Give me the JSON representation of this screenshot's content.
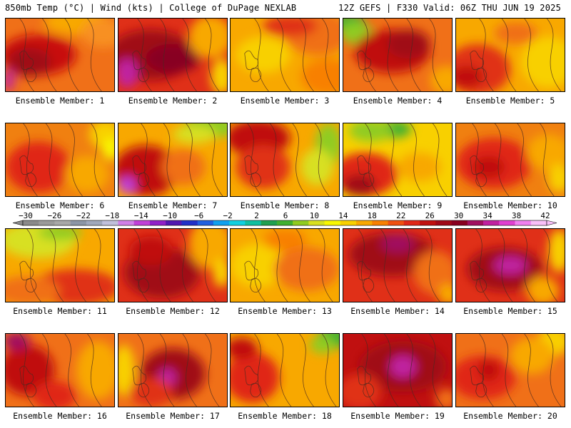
{
  "header": {
    "left": "850mb Temp (°C) | Wind (kts) | College of DuPage NEXLAB",
    "right": "12Z GEFS | F330 Valid: 06Z THU JUN 19 2025"
  },
  "colorbar": {
    "ticks": [
      "-30",
      "-26",
      "-22",
      "-18",
      "-14",
      "-10",
      "-6",
      "-2",
      "2",
      "6",
      "10",
      "14",
      "18",
      "22",
      "26",
      "30",
      "34",
      "38",
      "42"
    ],
    "colors": [
      "#8a8a8a",
      "#9a9a9a",
      "#a8a8a8",
      "#8c96a6",
      "#a0a8bc",
      "#c0c0dc",
      "#d080e8",
      "#c040d8",
      "#9020c8",
      "#5018b0",
      "#2030c8",
      "#2060e0",
      "#10a0f0",
      "#10d0e0",
      "#10c0a0",
      "#20a050",
      "#40b030",
      "#90cc20",
      "#d8e020",
      "#f8f800",
      "#f8d000",
      "#f8a800",
      "#f88000",
      "#f05010",
      "#e02818",
      "#c01010",
      "#a00818",
      "#880020",
      "#a01060",
      "#c020a0",
      "#e040d0",
      "#f080f0",
      "#f8c0f8"
    ]
  },
  "members": [
    {
      "label": "Ensemble Member: 1",
      "base": "#f07018",
      "blobs": [
        [
          "#c81010",
          0.3,
          0.5,
          0.35,
          0.28
        ],
        [
          "#a00818",
          0.22,
          0.6,
          0.2,
          0.2
        ],
        [
          "#c020a0",
          0.03,
          0.85,
          0.05,
          0.15
        ],
        [
          "#f8a800",
          0.65,
          0.05,
          0.3,
          0.18
        ],
        [
          "#f89020",
          0.9,
          0.2,
          0.2,
          0.2
        ]
      ]
    },
    {
      "label": "Ensemble Member: 2",
      "base": "#e03018",
      "blobs": [
        [
          "#a00818",
          0.3,
          0.5,
          0.4,
          0.35
        ],
        [
          "#c020a0",
          0.08,
          0.75,
          0.1,
          0.2
        ],
        [
          "#880020",
          0.5,
          0.55,
          0.25,
          0.2
        ],
        [
          "#f8a800",
          0.85,
          0.25,
          0.2,
          0.3
        ],
        [
          "#f8d000",
          0.95,
          0.8,
          0.1,
          0.25
        ]
      ]
    },
    {
      "label": "Ensemble Member: 3",
      "base": "#f8a800",
      "blobs": [
        [
          "#f8d000",
          0.3,
          0.5,
          0.25,
          0.25
        ],
        [
          "#f07018",
          0.8,
          0.2,
          0.3,
          0.3
        ],
        [
          "#e03018",
          0.55,
          0.1,
          0.25,
          0.15
        ],
        [
          "#f88000",
          0.9,
          0.8,
          0.25,
          0.25
        ]
      ]
    },
    {
      "label": "Ensemble Member: 4",
      "base": "#f07018",
      "blobs": [
        [
          "#40b030",
          0.05,
          0.05,
          0.15,
          0.12
        ],
        [
          "#90cc20",
          0.12,
          0.2,
          0.15,
          0.15
        ],
        [
          "#c01010",
          0.45,
          0.45,
          0.35,
          0.3
        ],
        [
          "#a00818",
          0.6,
          0.35,
          0.2,
          0.2
        ],
        [
          "#f8a800",
          0.95,
          0.85,
          0.15,
          0.2
        ]
      ]
    },
    {
      "label": "Ensemble Member: 5",
      "base": "#f8a800",
      "blobs": [
        [
          "#e03018",
          0.2,
          0.7,
          0.3,
          0.35
        ],
        [
          "#c01010",
          0.1,
          0.8,
          0.15,
          0.15
        ],
        [
          "#f8d000",
          0.85,
          0.6,
          0.25,
          0.35
        ],
        [
          "#f07018",
          0.55,
          0.2,
          0.2,
          0.15
        ]
      ]
    },
    {
      "label": "Ensemble Member: 6",
      "base": "#f08010",
      "blobs": [
        [
          "#e02818",
          0.3,
          0.6,
          0.3,
          0.35
        ],
        [
          "#f8d000",
          0.92,
          0.15,
          0.15,
          0.2
        ],
        [
          "#f8f800",
          0.97,
          0.35,
          0.08,
          0.15
        ],
        [
          "#f8a800",
          0.75,
          0.7,
          0.2,
          0.25
        ]
      ]
    },
    {
      "label": "Ensemble Member: 7",
      "base": "#f8a800",
      "blobs": [
        [
          "#90cc20",
          0.85,
          0.05,
          0.25,
          0.15
        ],
        [
          "#d8e020",
          0.7,
          0.15,
          0.2,
          0.12
        ],
        [
          "#c01010",
          0.25,
          0.65,
          0.3,
          0.35
        ],
        [
          "#c040d8",
          0.08,
          0.85,
          0.08,
          0.12
        ],
        [
          "#f07018",
          0.6,
          0.6,
          0.2,
          0.25
        ]
      ]
    },
    {
      "label": "Ensemble Member: 8",
      "base": "#f8a800",
      "blobs": [
        [
          "#c01010",
          0.25,
          0.2,
          0.3,
          0.25
        ],
        [
          "#e03018",
          0.3,
          0.6,
          0.25,
          0.3
        ],
        [
          "#90cc20",
          0.9,
          0.3,
          0.12,
          0.3
        ],
        [
          "#d8e020",
          0.8,
          0.6,
          0.15,
          0.25
        ]
      ]
    },
    {
      "label": "Ensemble Member: 9",
      "base": "#f8d000",
      "blobs": [
        [
          "#40b030",
          0.45,
          0.08,
          0.18,
          0.12
        ],
        [
          "#90cc20",
          0.25,
          0.1,
          0.2,
          0.15
        ],
        [
          "#e02818",
          0.2,
          0.7,
          0.3,
          0.3
        ],
        [
          "#a00818",
          0.15,
          0.85,
          0.15,
          0.15
        ],
        [
          "#f8a800",
          0.7,
          0.6,
          0.2,
          0.2
        ]
      ]
    },
    {
      "label": "Ensemble Member: 10",
      "base": "#f08010",
      "blobs": [
        [
          "#e02818",
          0.35,
          0.55,
          0.35,
          0.35
        ],
        [
          "#c01010",
          0.3,
          0.6,
          0.15,
          0.15
        ],
        [
          "#f8a800",
          0.85,
          0.4,
          0.2,
          0.25
        ],
        [
          "#f8d000",
          0.95,
          0.75,
          0.1,
          0.2
        ]
      ]
    },
    {
      "label": "Ensemble Member: 11",
      "base": "#f8a800",
      "blobs": [
        [
          "#d8e020",
          0.3,
          0.15,
          0.35,
          0.25
        ],
        [
          "#90cc20",
          0.5,
          0.05,
          0.2,
          0.1
        ],
        [
          "#e03018",
          0.65,
          0.8,
          0.4,
          0.25
        ],
        [
          "#f07018",
          0.2,
          0.85,
          0.3,
          0.2
        ]
      ]
    },
    {
      "label": "Ensemble Member: 12",
      "base": "#e03018",
      "blobs": [
        [
          "#a00818",
          0.4,
          0.6,
          0.35,
          0.35
        ],
        [
          "#c01010",
          0.3,
          0.3,
          0.2,
          0.2
        ],
        [
          "#f8a800",
          0.85,
          0.2,
          0.2,
          0.35
        ],
        [
          "#f8d000",
          0.95,
          0.6,
          0.08,
          0.2
        ]
      ]
    },
    {
      "label": "Ensemble Member: 13",
      "base": "#f8a800",
      "blobs": [
        [
          "#f8d000",
          0.25,
          0.5,
          0.25,
          0.3
        ],
        [
          "#f07018",
          0.7,
          0.55,
          0.3,
          0.3
        ],
        [
          "#f88000",
          0.5,
          0.15,
          0.2,
          0.15
        ]
      ]
    },
    {
      "label": "Ensemble Member: 14",
      "base": "#e03018",
      "blobs": [
        [
          "#a00818",
          0.45,
          0.35,
          0.4,
          0.3
        ],
        [
          "#a01060",
          0.5,
          0.2,
          0.15,
          0.12
        ],
        [
          "#f07018",
          0.85,
          0.6,
          0.2,
          0.3
        ],
        [
          "#f8a800",
          0.97,
          0.9,
          0.1,
          0.15
        ]
      ]
    },
    {
      "label": "Ensemble Member: 15",
      "base": "#e03018",
      "blobs": [
        [
          "#a00818",
          0.45,
          0.55,
          0.35,
          0.3
        ],
        [
          "#c020a0",
          0.5,
          0.5,
          0.15,
          0.12
        ],
        [
          "#f8d000",
          0.95,
          0.3,
          0.1,
          0.3
        ],
        [
          "#f8a800",
          0.8,
          0.85,
          0.15,
          0.2
        ]
      ]
    },
    {
      "label": "Ensemble Member: 16",
      "base": "#f07018",
      "blobs": [
        [
          "#c01010",
          0.2,
          0.5,
          0.25,
          0.35
        ],
        [
          "#a01060",
          0.1,
          0.1,
          0.12,
          0.12
        ],
        [
          "#f8a800",
          0.85,
          0.5,
          0.2,
          0.4
        ],
        [
          "#e02818",
          0.45,
          0.85,
          0.2,
          0.2
        ]
      ]
    },
    {
      "label": "Ensemble Member: 17",
      "base": "#f07018",
      "blobs": [
        [
          "#a00818",
          0.5,
          0.55,
          0.3,
          0.35
        ],
        [
          "#c020a0",
          0.45,
          0.6,
          0.08,
          0.12
        ],
        [
          "#f8d000",
          0.05,
          0.5,
          0.1,
          0.35
        ],
        [
          "#e03018",
          0.3,
          0.8,
          0.2,
          0.2
        ]
      ]
    },
    {
      "label": "Ensemble Member: 18",
      "base": "#f8a800",
      "blobs": [
        [
          "#40b030",
          0.95,
          0.05,
          0.15,
          0.15
        ],
        [
          "#90cc20",
          0.85,
          0.15,
          0.12,
          0.12
        ],
        [
          "#e02818",
          0.2,
          0.6,
          0.25,
          0.35
        ],
        [
          "#c01010",
          0.1,
          0.2,
          0.15,
          0.15
        ]
      ]
    },
    {
      "label": "Ensemble Member: 19",
      "base": "#c01010",
      "blobs": [
        [
          "#a00818",
          0.55,
          0.45,
          0.4,
          0.35
        ],
        [
          "#c020a0",
          0.55,
          0.45,
          0.12,
          0.15
        ],
        [
          "#e03018",
          0.15,
          0.8,
          0.2,
          0.25
        ],
        [
          "#f07018",
          0.95,
          0.9,
          0.1,
          0.15
        ]
      ]
    },
    {
      "label": "Ensemble Member: 20",
      "base": "#f07018",
      "blobs": [
        [
          "#e02818",
          0.25,
          0.6,
          0.3,
          0.3
        ],
        [
          "#f8d000",
          0.9,
          0.1,
          0.15,
          0.2
        ],
        [
          "#f8a800",
          0.7,
          0.3,
          0.2,
          0.25
        ],
        [
          "#c01010",
          0.3,
          0.5,
          0.1,
          0.15
        ]
      ]
    }
  ]
}
